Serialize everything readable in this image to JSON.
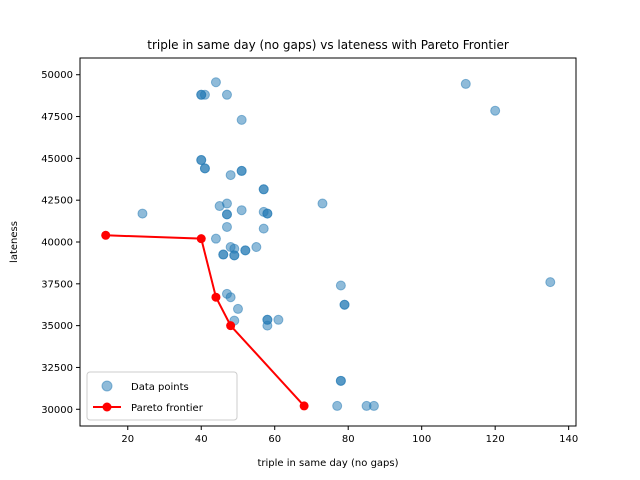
{
  "chart_data": {
    "type": "scatter",
    "title": "triple in same day (no gaps) vs lateness with Pareto Frontier",
    "xlabel": "triple in same day (no gaps)",
    "ylabel": "lateness",
    "xlim": [
      7,
      142
    ],
    "ylim": [
      29000,
      51000
    ],
    "xticks": [
      20,
      40,
      60,
      80,
      100,
      120,
      140
    ],
    "yticks": [
      30000,
      32500,
      35000,
      37500,
      40000,
      42500,
      45000,
      47500,
      50000
    ],
    "xtick_labels": [
      "20",
      "40",
      "60",
      "80",
      "100",
      "120",
      "140"
    ],
    "ytick_labels": [
      "30000",
      "32500",
      "35000",
      "37500",
      "40000",
      "42500",
      "45000",
      "47500",
      "50000"
    ],
    "grid": false,
    "legend": {
      "placement": "lower-left",
      "entries": [
        "Data points",
        "Pareto frontier"
      ]
    },
    "series": [
      {
        "name": "Data points",
        "kind": "scatter",
        "color": "#1f77b4",
        "alpha": 0.5,
        "points": [
          [
            44,
            49550
          ],
          [
            40,
            48800
          ],
          [
            40,
            48800
          ],
          [
            41,
            48800
          ],
          [
            47,
            48800
          ],
          [
            112,
            49450
          ],
          [
            120,
            47850
          ],
          [
            51,
            47300
          ],
          [
            40,
            44900
          ],
          [
            40,
            44900
          ],
          [
            41,
            44400
          ],
          [
            41,
            44400
          ],
          [
            51,
            44250
          ],
          [
            51,
            44250
          ],
          [
            48,
            44000
          ],
          [
            57,
            43150
          ],
          [
            57,
            43150
          ],
          [
            73,
            42300
          ],
          [
            45,
            42150
          ],
          [
            47,
            42300
          ],
          [
            24,
            41700
          ],
          [
            47,
            41650
          ],
          [
            47,
            41650
          ],
          [
            51,
            41900
          ],
          [
            57,
            41800
          ],
          [
            58,
            41700
          ],
          [
            58,
            41700
          ],
          [
            47,
            40900
          ],
          [
            57,
            40800
          ],
          [
            44,
            40200
          ],
          [
            48,
            39700
          ],
          [
            49,
            39600
          ],
          [
            55,
            39700
          ],
          [
            52,
            39500
          ],
          [
            52,
            39500
          ],
          [
            46,
            39250
          ],
          [
            46,
            39250
          ],
          [
            49,
            39200
          ],
          [
            49,
            39200
          ],
          [
            78,
            37400
          ],
          [
            79,
            36250
          ],
          [
            79,
            36250
          ],
          [
            135,
            37600
          ],
          [
            47,
            36900
          ],
          [
            48,
            36700
          ],
          [
            50,
            36000
          ],
          [
            58,
            35350
          ],
          [
            58,
            35350
          ],
          [
            61,
            35350
          ],
          [
            58,
            35000
          ],
          [
            49,
            35300
          ],
          [
            78,
            31700
          ],
          [
            78,
            31700
          ],
          [
            77,
            30200
          ],
          [
            85,
            30200
          ],
          [
            87,
            30200
          ]
        ]
      },
      {
        "name": "Pareto frontier",
        "kind": "line",
        "color": "#ff0000",
        "points": [
          [
            14,
            40400
          ],
          [
            40,
            40200
          ],
          [
            44,
            36700
          ],
          [
            48,
            35000
          ],
          [
            68,
            30200
          ]
        ]
      }
    ]
  }
}
